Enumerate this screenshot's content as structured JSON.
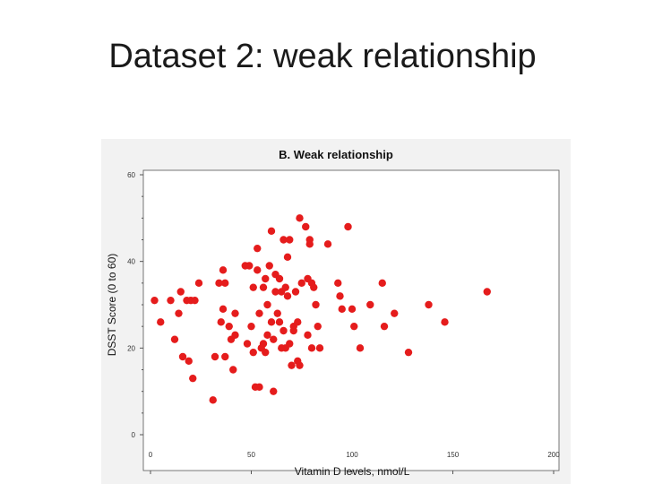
{
  "slide": {
    "title": "Dataset 2: weak relationship"
  },
  "colors": {
    "point": "#e51c1c",
    "plot_bg": "#ffffff",
    "panel_bg": "#f2f2f2",
    "axis": "#555555"
  },
  "chart_data": {
    "type": "scatter",
    "title": "B. Weak relationship",
    "xlabel": "Vitamin D levels, nmol/L",
    "ylabel": "DSST Score (0 to 60)",
    "xlim": [
      0,
      200
    ],
    "ylim": [
      0,
      60
    ],
    "xticks": [
      0,
      50,
      100,
      150,
      200
    ],
    "yticks": [
      0,
      20,
      40,
      60
    ],
    "grid": false,
    "points": [
      {
        "x": 2,
        "y": 31
      },
      {
        "x": 5,
        "y": 26
      },
      {
        "x": 10,
        "y": 31
      },
      {
        "x": 12,
        "y": 22
      },
      {
        "x": 14,
        "y": 28
      },
      {
        "x": 15,
        "y": 33
      },
      {
        "x": 16,
        "y": 18
      },
      {
        "x": 18,
        "y": 31
      },
      {
        "x": 19,
        "y": 17
      },
      {
        "x": 20,
        "y": 31
      },
      {
        "x": 21,
        "y": 13
      },
      {
        "x": 22,
        "y": 31
      },
      {
        "x": 24,
        "y": 35
      },
      {
        "x": 31,
        "y": 8
      },
      {
        "x": 32,
        "y": 18
      },
      {
        "x": 34,
        "y": 35
      },
      {
        "x": 35,
        "y": 26
      },
      {
        "x": 36,
        "y": 38
      },
      {
        "x": 36,
        "y": 29
      },
      {
        "x": 37,
        "y": 18
      },
      {
        "x": 37,
        "y": 35
      },
      {
        "x": 39,
        "y": 25
      },
      {
        "x": 40,
        "y": 22
      },
      {
        "x": 41,
        "y": 15
      },
      {
        "x": 42,
        "y": 23
      },
      {
        "x": 42,
        "y": 28
      },
      {
        "x": 47,
        "y": 39
      },
      {
        "x": 48,
        "y": 21
      },
      {
        "x": 49,
        "y": 39
      },
      {
        "x": 50,
        "y": 25
      },
      {
        "x": 51,
        "y": 19
      },
      {
        "x": 51,
        "y": 34
      },
      {
        "x": 52,
        "y": 11
      },
      {
        "x": 53,
        "y": 43
      },
      {
        "x": 53,
        "y": 38
      },
      {
        "x": 54,
        "y": 11
      },
      {
        "x": 54,
        "y": 28
      },
      {
        "x": 55,
        "y": 20
      },
      {
        "x": 56,
        "y": 21
      },
      {
        "x": 56,
        "y": 34
      },
      {
        "x": 57,
        "y": 36
      },
      {
        "x": 57,
        "y": 19
      },
      {
        "x": 58,
        "y": 23
      },
      {
        "x": 58,
        "y": 30
      },
      {
        "x": 59,
        "y": 39
      },
      {
        "x": 60,
        "y": 47
      },
      {
        "x": 60,
        "y": 26
      },
      {
        "x": 61,
        "y": 10
      },
      {
        "x": 61,
        "y": 22
      },
      {
        "x": 62,
        "y": 33
      },
      {
        "x": 62,
        "y": 37
      },
      {
        "x": 63,
        "y": 28
      },
      {
        "x": 64,
        "y": 36
      },
      {
        "x": 64,
        "y": 26
      },
      {
        "x": 65,
        "y": 33
      },
      {
        "x": 65,
        "y": 20
      },
      {
        "x": 66,
        "y": 45
      },
      {
        "x": 66,
        "y": 24
      },
      {
        "x": 67,
        "y": 34
      },
      {
        "x": 67,
        "y": 20
      },
      {
        "x": 68,
        "y": 41
      },
      {
        "x": 68,
        "y": 32
      },
      {
        "x": 69,
        "y": 45
      },
      {
        "x": 69,
        "y": 21
      },
      {
        "x": 70,
        "y": 16
      },
      {
        "x": 71,
        "y": 25
      },
      {
        "x": 71,
        "y": 24
      },
      {
        "x": 72,
        "y": 33
      },
      {
        "x": 73,
        "y": 17
      },
      {
        "x": 73,
        "y": 26
      },
      {
        "x": 74,
        "y": 50
      },
      {
        "x": 74,
        "y": 16
      },
      {
        "x": 75,
        "y": 35
      },
      {
        "x": 77,
        "y": 48
      },
      {
        "x": 78,
        "y": 36
      },
      {
        "x": 78,
        "y": 23
      },
      {
        "x": 79,
        "y": 45
      },
      {
        "x": 79,
        "y": 44
      },
      {
        "x": 80,
        "y": 20
      },
      {
        "x": 80,
        "y": 35
      },
      {
        "x": 81,
        "y": 34
      },
      {
        "x": 82,
        "y": 30
      },
      {
        "x": 83,
        "y": 25
      },
      {
        "x": 84,
        "y": 20
      },
      {
        "x": 88,
        "y": 44
      },
      {
        "x": 93,
        "y": 35
      },
      {
        "x": 94,
        "y": 32
      },
      {
        "x": 95,
        "y": 29
      },
      {
        "x": 98,
        "y": 48
      },
      {
        "x": 100,
        "y": 29
      },
      {
        "x": 101,
        "y": 25
      },
      {
        "x": 104,
        "y": 20
      },
      {
        "x": 109,
        "y": 30
      },
      {
        "x": 115,
        "y": 35
      },
      {
        "x": 116,
        "y": 25
      },
      {
        "x": 121,
        "y": 28
      },
      {
        "x": 128,
        "y": 19
      },
      {
        "x": 138,
        "y": 30
      },
      {
        "x": 146,
        "y": 26
      },
      {
        "x": 167,
        "y": 33
      }
    ]
  }
}
